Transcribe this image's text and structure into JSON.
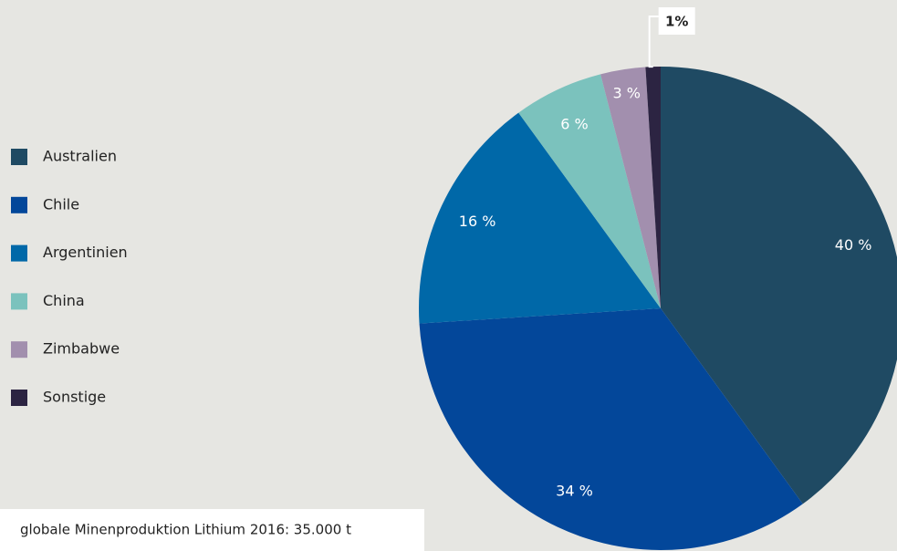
{
  "chart_data": {
    "type": "pie",
    "categories": [
      "Australien",
      "Chile",
      "Argentinien",
      "China",
      "Zimbabwe",
      "Sonstige"
    ],
    "values": [
      40,
      34,
      16,
      6,
      3,
      1
    ],
    "value_labels": [
      "40 %",
      "34 %",
      "16 %",
      "6 %",
      "3 %",
      "1%"
    ],
    "colors": [
      "#1f4a63",
      "#03479a",
      "#0068a8",
      "#7bc2bd",
      "#a28fae",
      "#2c2442"
    ],
    "legend": "left",
    "note": "globale Minenproduktion Lithium 2016: 35.000 t"
  }
}
